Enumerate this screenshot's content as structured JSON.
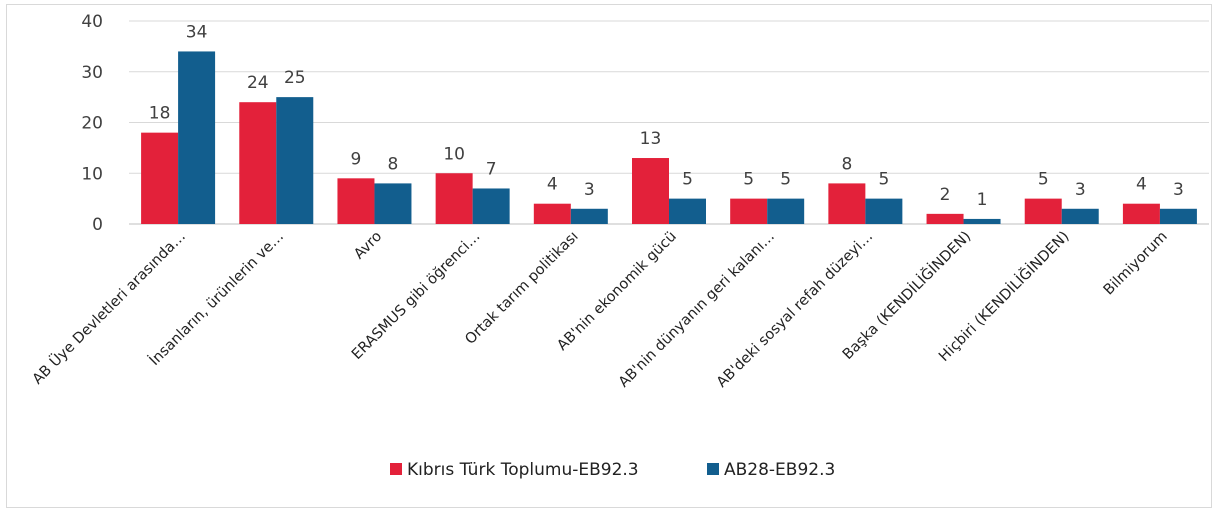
{
  "chart_data": {
    "type": "bar",
    "categories": [
      "AB Üye Devletleri arasında…",
      "İnsanların, ürünlerin ve…",
      "Avro",
      "ERASMUS gibi öğrenci…",
      "Ortak tarım politikası",
      "AB'nin ekonomik gücü",
      "AB'nin dünyanın geri kalanı…",
      "AB'deki sosyal refah düzeyi…",
      "Başka (KENDİLİĞİNDEN)",
      "Hiçbiri (KENDİLİĞİNDEN)",
      "Bilmiyorum"
    ],
    "series": [
      {
        "name": "Kıbrıs Türk Toplumu-EB92.3",
        "color": "#e3213a",
        "values": [
          18,
          24,
          9,
          10,
          4,
          13,
          5,
          8,
          2,
          5,
          4
        ]
      },
      {
        "name": "AB28-EB92.3",
        "color": "#125e8e",
        "values": [
          34,
          25,
          8,
          7,
          3,
          5,
          5,
          5,
          1,
          3,
          3
        ]
      }
    ],
    "ylim": [
      0,
      40
    ],
    "yticks": [
      0,
      10,
      20,
      30,
      40
    ],
    "grid": true,
    "legend_position": "bottom",
    "title": "",
    "xlabel": "",
    "ylabel": ""
  }
}
